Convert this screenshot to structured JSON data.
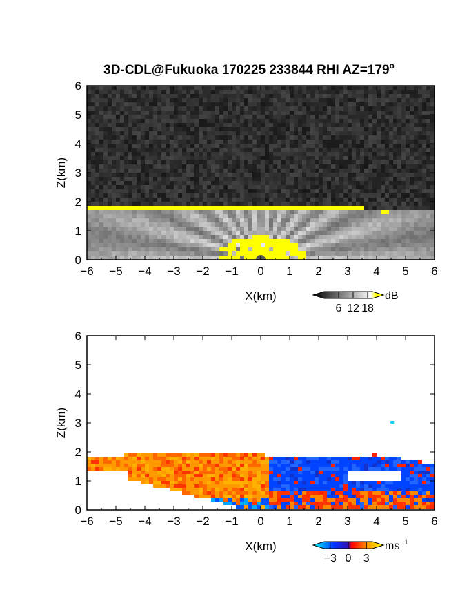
{
  "figure": {
    "title": "3D-CDL@Fukuoka 170225 233844 RHI AZ=179",
    "title_superscript": "o"
  },
  "chart_data": [
    {
      "type": "heatmap",
      "panel": "reflectivity",
      "title": "",
      "xlabel": "X(km)",
      "ylabel": "Z(km)",
      "xlim": [
        -6,
        6
      ],
      "ylim": [
        0,
        6
      ],
      "x_ticks": [
        "-6",
        "-5",
        "-4",
        "-3",
        "-2",
        "-1",
        "0",
        "1",
        "2",
        "3",
        "4",
        "5",
        "6"
      ],
      "y_ticks": [
        "0",
        "1",
        "2",
        "3",
        "4",
        "5",
        "6"
      ],
      "grid": false,
      "colorbar": {
        "unit": "dB",
        "tick_labels": [
          "6",
          "12",
          "18"
        ],
        "ticks": [
          6,
          12,
          18
        ],
        "range": [
          0,
          20
        ],
        "colors": [
          "#000000",
          "#ffffff",
          "#ffff00"
        ]
      },
      "features": {
        "background_noise_top_km": 6,
        "aerosol_layer_top_km": [
          [
            -6,
            1.9
          ],
          [
            -2,
            1.85
          ],
          [
            0,
            1.9
          ],
          [
            2,
            1.85
          ],
          [
            4.4,
            1.75
          ]
        ],
        "strong_echo_color": "#ffff00"
      }
    },
    {
      "type": "heatmap",
      "panel": "doppler_velocity",
      "title": "",
      "xlabel": "X(km)",
      "ylabel": "Z(km)",
      "xlim": [
        -6,
        6
      ],
      "ylim": [
        0,
        6
      ],
      "x_ticks": [
        "-6",
        "-5",
        "-4",
        "-3",
        "-2",
        "-1",
        "0",
        "1",
        "2",
        "3",
        "4",
        "5",
        "6"
      ],
      "y_ticks": [
        "0",
        "1",
        "2",
        "3",
        "4",
        "5",
        "6"
      ],
      "grid": false,
      "colorbar": {
        "unit": "ms",
        "unit_superscript": "−1",
        "tick_labels": [
          "−3",
          "0",
          "3"
        ],
        "ticks": [
          -3,
          0,
          3
        ],
        "range": [
          -4,
          4
        ],
        "colors": [
          "#00ffff",
          "#0044ff",
          "#ff0000",
          "#ffa500",
          "#ffff00"
        ]
      },
      "features": {
        "data_top_km": [
          [
            -6,
            1.85
          ],
          [
            -3,
            1.95
          ],
          [
            0,
            1.9
          ],
          [
            2,
            1.8
          ],
          [
            4,
            1.9
          ],
          [
            6,
            1.6
          ]
        ],
        "positive_region_x_km": [
          -6,
          0.3
        ],
        "negative_region_x_km": [
          0.3,
          6
        ]
      }
    }
  ]
}
